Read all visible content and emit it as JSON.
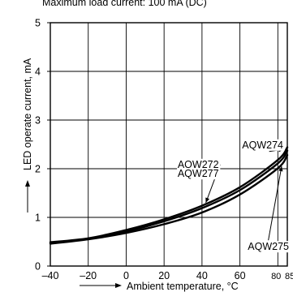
{
  "caption": "Maximum load current: 100 mA (DC)",
  "chart_data": {
    "type": "line",
    "xlabel": "Ambient temperature, °C",
    "ylabel": "LED operate current, mA",
    "xlim": [
      -40,
      85
    ],
    "ylim": [
      0,
      5
    ],
    "x_ticks": [
      -40,
      -20,
      0,
      20,
      40,
      60,
      80,
      85
    ],
    "x_tick_labels": [
      "–40",
      "–20",
      "0",
      "20",
      "40",
      "60",
      "80",
      "85"
    ],
    "y_ticks": [
      0,
      1,
      2,
      3,
      4,
      5
    ],
    "y_tick_labels": [
      "0",
      "1",
      "2",
      "3",
      "4",
      "5"
    ],
    "grid": true,
    "series": [
      {
        "name": "AQW274",
        "x": [
          -40,
          -20,
          0,
          20,
          40,
          60,
          80,
          85
        ],
        "y": [
          0.49,
          0.57,
          0.74,
          0.96,
          1.24,
          1.62,
          2.18,
          2.44
        ]
      },
      {
        "name": "AQW272 AQW277",
        "x": [
          -40,
          -20,
          0,
          20,
          40,
          60,
          80,
          85
        ],
        "y": [
          0.48,
          0.56,
          0.71,
          0.92,
          1.19,
          1.56,
          2.11,
          2.37
        ]
      },
      {
        "name": "AQW275",
        "x": [
          -40,
          -20,
          0,
          20,
          40,
          60,
          80,
          85
        ],
        "y": [
          0.46,
          0.55,
          0.68,
          0.86,
          1.1,
          1.47,
          2.01,
          2.28
        ]
      }
    ],
    "annotations": [
      {
        "text": "AQW274",
        "x": 72,
        "y": 2.42,
        "points_to": [
          83,
          2.4
        ]
      },
      {
        "text": "AQW272",
        "x": 38,
        "y": 2.02,
        "points_to": [
          42,
          1.3
        ]
      },
      {
        "text": "AQW277",
        "x": 38,
        "y": 1.83
      },
      {
        "text": "AQW275",
        "x": 75,
        "y": 0.33,
        "points_to": [
          82,
          2.05
        ]
      }
    ]
  },
  "colors": {
    "line": "#000000",
    "grid": "#000000",
    "background": "#ffffff"
  }
}
